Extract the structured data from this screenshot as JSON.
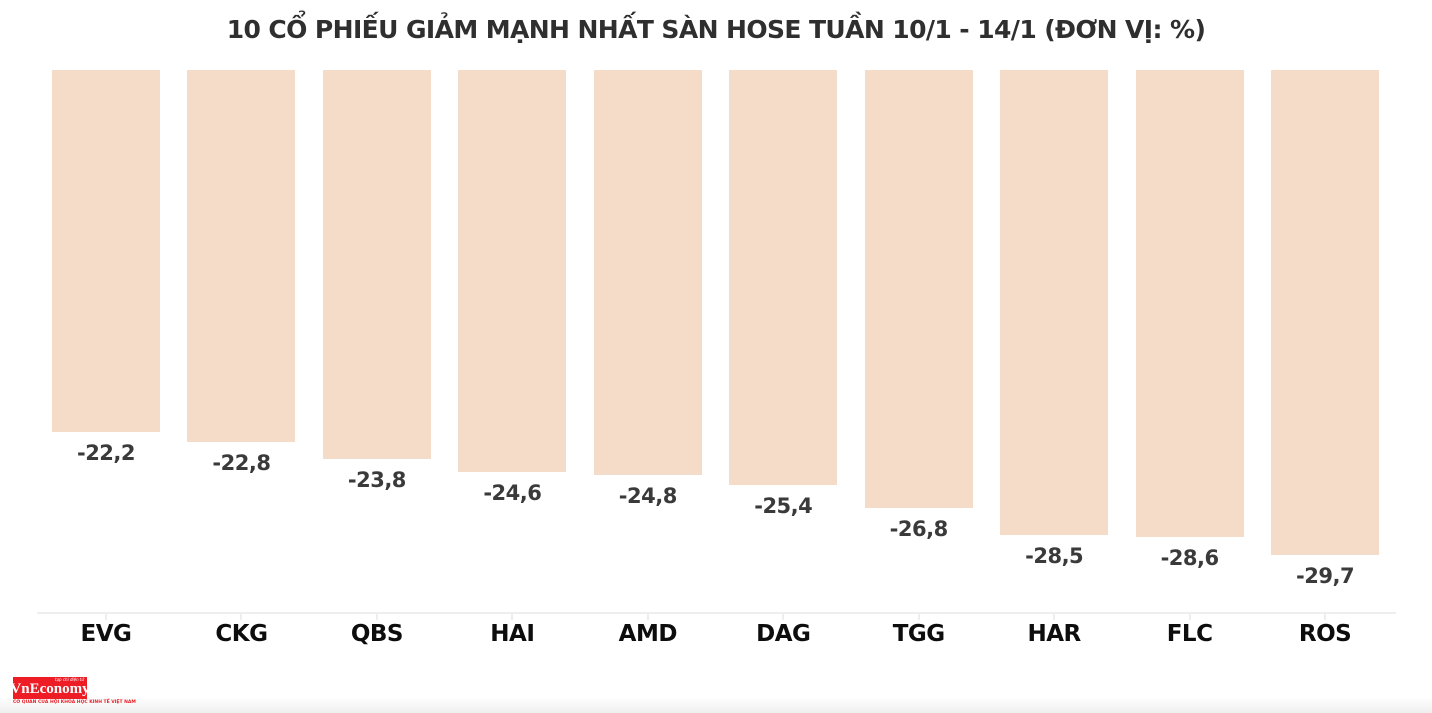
{
  "chart_data": {
    "type": "bar",
    "title": "10 CỔ PHIẾU GIẢM MẠNH NHẤT SÀN HOSE TUẦN 10/1 - 14/1 (ĐƠN VỊ: %)",
    "categories": [
      "EVG",
      "CKG",
      "QBS",
      "HAI",
      "AMD",
      "DAG",
      "TGG",
      "HAR",
      "FLC",
      "ROS"
    ],
    "values": [
      -22.2,
      -22.8,
      -23.8,
      -24.6,
      -24.8,
      -25.4,
      -26.8,
      -28.5,
      -28.6,
      -29.7
    ],
    "value_labels": [
      "-22,2",
      "-22,8",
      "-23,8",
      "-24,6",
      "-24,8",
      "-25,4",
      "-26,8",
      "-28,5",
      "-28,6",
      "-29,7"
    ],
    "xlabel": "",
    "ylabel": "",
    "ylim": [
      -33.2,
      0
    ],
    "bars_hang_from_zero_at_top": true,
    "grid": false,
    "legend": false,
    "bar_color": "#f4dcc8",
    "value_label_color": "#3a3a3a",
    "category_label_color": "#0d0d0d",
    "axis_line_color": "#eeeeee",
    "title_color": "#2f2f2f",
    "background_color": "#ffffff"
  },
  "branding": {
    "logo_text": "VnEconomy",
    "logo_tagline_top": "tạp chí điện tử",
    "logo_tagline_bottom": "CƠ QUAN CỦA HỘI KHOA HỌC KINH TẾ VIỆT NAM",
    "logo_bg_color": "#ee1c25",
    "logo_text_color": "#ffffff"
  }
}
